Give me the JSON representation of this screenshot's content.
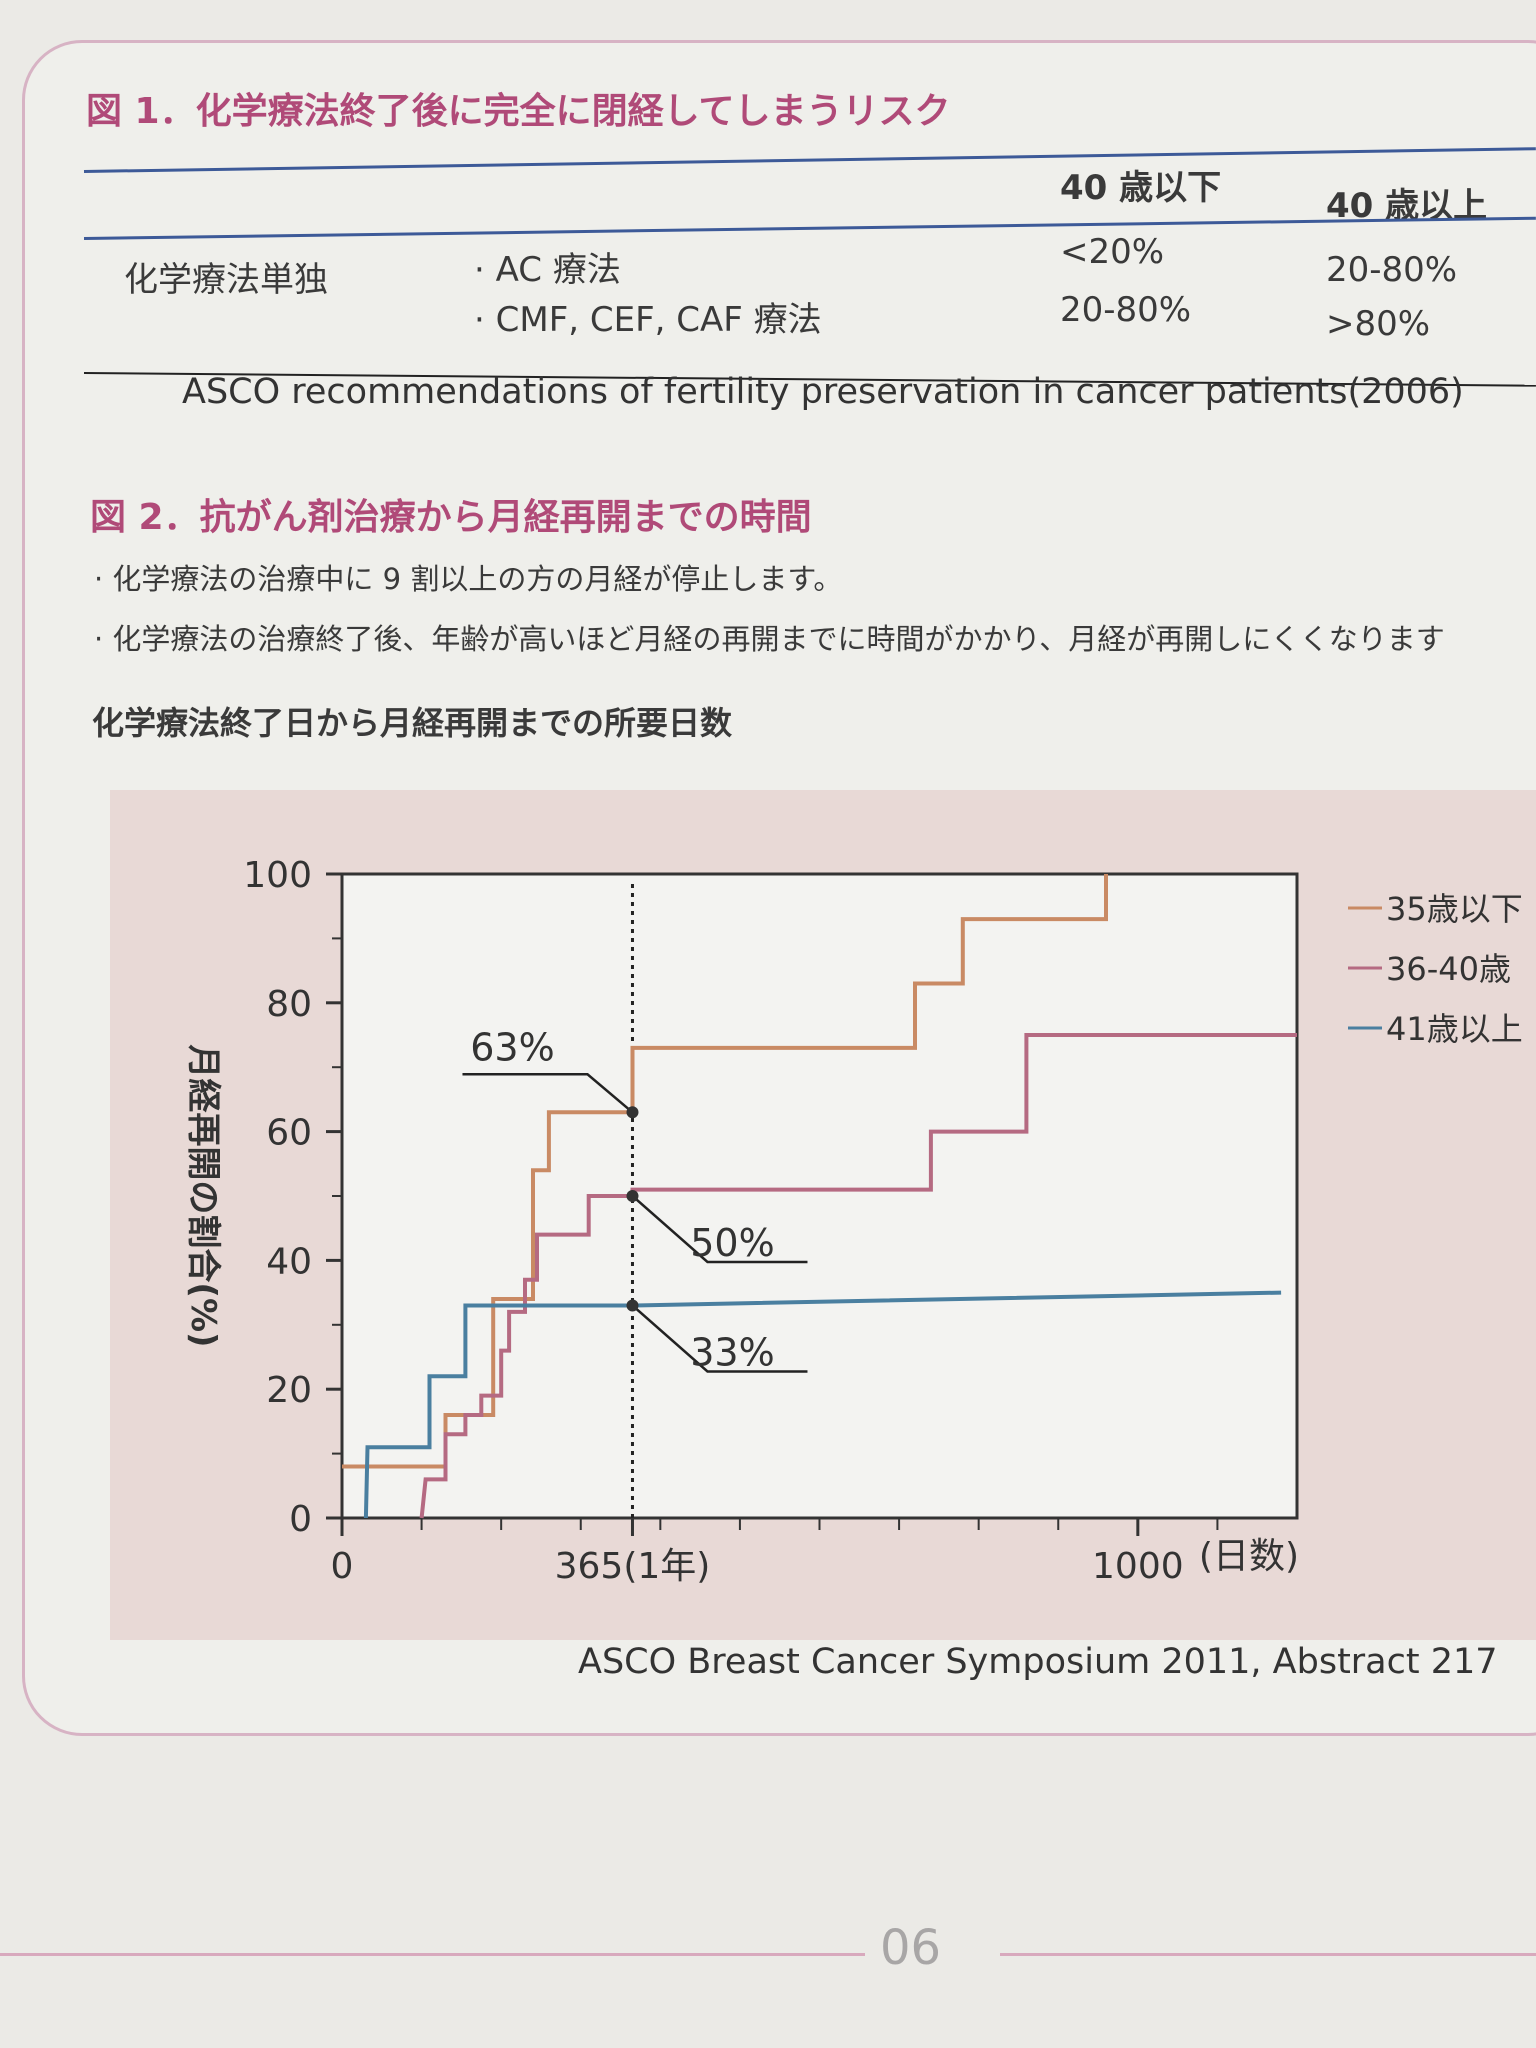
{
  "figure1": {
    "title": "図 1．化学療法終了後に完全に閉経してしまうリスク",
    "columns": [
      "40 歳以下",
      "40 歳以上"
    ],
    "row_label": "化学療法単独",
    "rows": [
      {
        "regimen": "· AC 療法",
        "under40": "<20%",
        "over40": "20-80%"
      },
      {
        "regimen": "· CMF, CEF, CAF 療法",
        "under40": "20-80%",
        "over40": ">80%"
      }
    ],
    "source": "ASCO recommendations of fertility preservation in cancer patients(2006)"
  },
  "figure2": {
    "title": "図 2．抗がん剤治療から月経再開までの時間",
    "bullets": [
      "· 化学療法の治療中に 9 割以上の方の月経が停止します。",
      "· 化学療法の治療終了後、年齢が高いほど月経の再開までに時間がかかり、月経が再開しにくくなります"
    ],
    "chart_title": "化学療法終了日から月経再開までの所要日数",
    "source": "ASCO Breast Cancer Symposium 2011, Abstract 217"
  },
  "chart_data": {
    "type": "line",
    "step": true,
    "xlabel": "(日数)",
    "ylabel": "月経再開の割合(%)",
    "xlim": [
      0,
      1200
    ],
    "ylim": [
      0,
      100
    ],
    "x_ticks": [
      {
        "value": 0,
        "label": "0"
      },
      {
        "value": 365,
        "label": "365(1年)"
      },
      {
        "value": 1000,
        "label": "1000"
      }
    ],
    "y_ticks": [
      0,
      20,
      40,
      60,
      80,
      100
    ],
    "reference_line_x": 365,
    "legend_position": "right",
    "series": [
      {
        "name": "35歳以下",
        "color": "#c98a64",
        "points": [
          [
            0,
            8
          ],
          [
            130,
            8
          ],
          [
            130,
            16
          ],
          [
            190,
            16
          ],
          [
            190,
            34
          ],
          [
            240,
            34
          ],
          [
            240,
            54
          ],
          [
            260,
            54
          ],
          [
            260,
            63
          ],
          [
            365,
            63
          ],
          [
            365,
            73
          ],
          [
            720,
            73
          ],
          [
            720,
            83
          ],
          [
            780,
            83
          ],
          [
            780,
            93
          ],
          [
            960,
            93
          ],
          [
            960,
            100
          ]
        ]
      },
      {
        "name": "36-40歳",
        "color": "#b56a82",
        "points": [
          [
            100,
            0
          ],
          [
            105,
            6
          ],
          [
            130,
            6
          ],
          [
            130,
            13
          ],
          [
            155,
            13
          ],
          [
            155,
            16
          ],
          [
            175,
            16
          ],
          [
            175,
            19
          ],
          [
            200,
            19
          ],
          [
            200,
            26
          ],
          [
            210,
            26
          ],
          [
            210,
            32
          ],
          [
            230,
            32
          ],
          [
            230,
            37
          ],
          [
            245,
            37
          ],
          [
            245,
            44
          ],
          [
            310,
            44
          ],
          [
            310,
            50
          ],
          [
            365,
            50
          ],
          [
            365,
            51
          ],
          [
            740,
            51
          ],
          [
            740,
            60
          ],
          [
            860,
            60
          ],
          [
            860,
            75
          ],
          [
            1200,
            75
          ]
        ]
      },
      {
        "name": "41歳以上",
        "color": "#4a7fa0",
        "points": [
          [
            30,
            0
          ],
          [
            32,
            11
          ],
          [
            110,
            11
          ],
          [
            110,
            22
          ],
          [
            155,
            22
          ],
          [
            155,
            33
          ],
          [
            365,
            33
          ],
          [
            1180,
            35
          ]
        ]
      }
    ],
    "annotations": [
      {
        "label": "63%",
        "x": 365,
        "y": 63
      },
      {
        "label": "50%",
        "x": 365,
        "y": 50
      },
      {
        "label": "33%",
        "x": 365,
        "y": 33
      }
    ]
  },
  "page_number": "06"
}
